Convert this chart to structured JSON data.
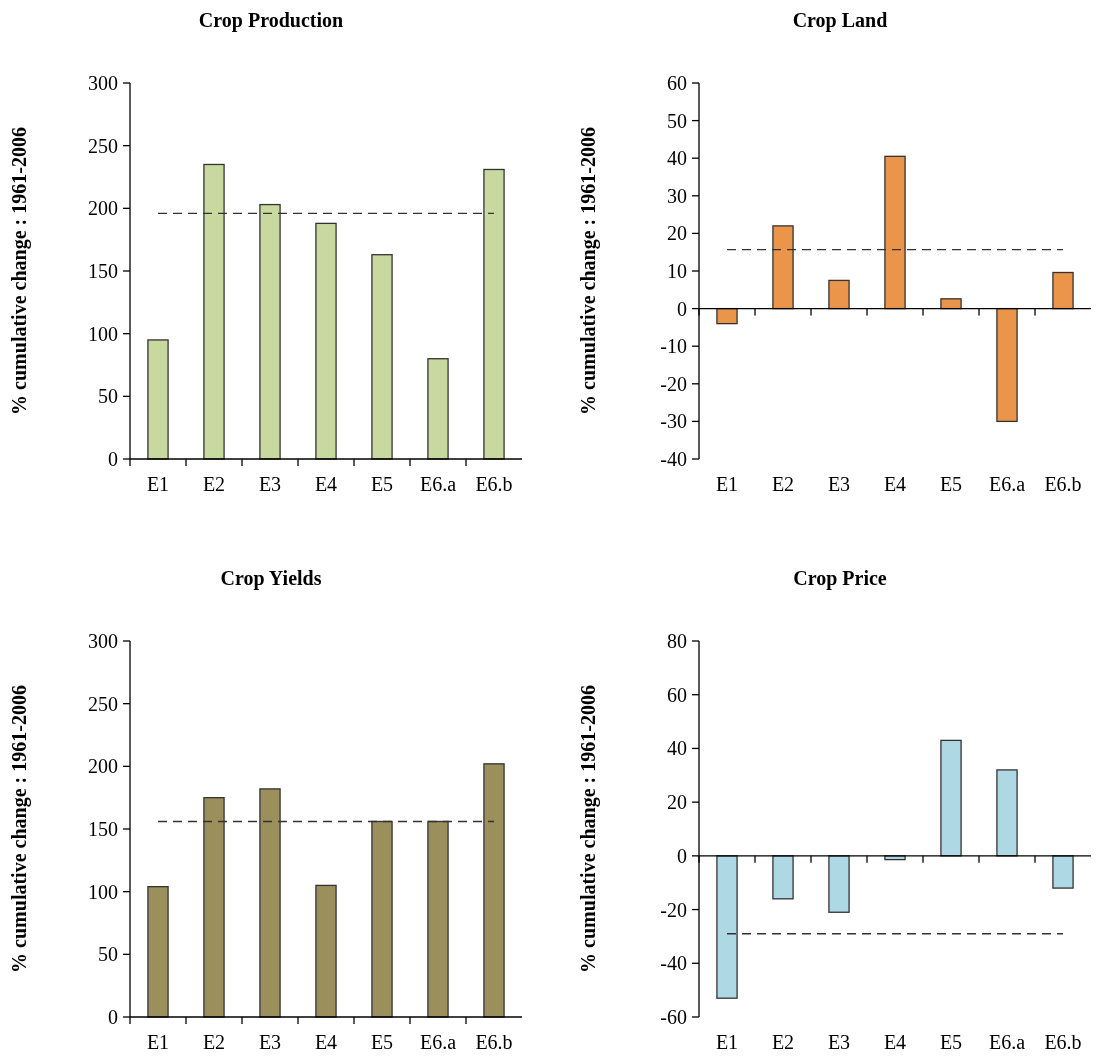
{
  "chart_data": [
    {
      "type": "bar",
      "title": "Crop Production",
      "ylabel": "% cumulative change : 1961-2006",
      "categories": [
        "E1",
        "E2",
        "E3",
        "E4",
        "E5",
        "E6.a",
        "E6.b"
      ],
      "values": [
        95,
        235,
        203,
        188,
        163,
        80,
        231
      ],
      "color": "#c8d9a0",
      "ylim": [
        0,
        300
      ],
      "yticks": [
        0,
        50,
        100,
        150,
        200,
        250,
        300
      ],
      "ref_lines": [
        {
          "axis": "y",
          "value": 196,
          "label": null,
          "color": "#333333",
          "line_style": "dashed"
        }
      ]
    },
    {
      "type": "bar",
      "title": "Crop Land",
      "ylabel": "% cumulative change : 1961-2006",
      "categories": [
        "E1",
        "E2",
        "E3",
        "E4",
        "E5",
        "E6.a",
        "E6.b"
      ],
      "values": [
        -4,
        22,
        7.5,
        40.5,
        2.6,
        -30,
        9.6
      ],
      "color": "#eb954a",
      "ylim": [
        -40,
        60
      ],
      "yticks": [
        -40,
        -30,
        -20,
        -10,
        0,
        10,
        20,
        30,
        40,
        50,
        60
      ],
      "ref_lines": [
        {
          "axis": "y",
          "value": 15.7,
          "label": null,
          "color": "#333333",
          "line_style": "dashed"
        }
      ]
    },
    {
      "type": "bar",
      "title": "Crop Yields",
      "ylabel": "% cumulative change : 1961-2006",
      "categories": [
        "E1",
        "E2",
        "E3",
        "E4",
        "E5",
        "E6.a",
        "E6.b"
      ],
      "values": [
        104,
        175,
        182,
        105,
        156,
        156,
        202
      ],
      "color": "#9b8f5c",
      "ylim": [
        0,
        300
      ],
      "yticks": [
        0,
        50,
        100,
        150,
        200,
        250,
        300
      ],
      "ref_lines": [
        {
          "axis": "y",
          "value": 156,
          "label": null,
          "color": "#333333",
          "line_style": "dashed"
        }
      ]
    },
    {
      "type": "bar",
      "title": "Crop Price",
      "ylabel": "% cumulative change : 1961-2006",
      "categories": [
        "E1",
        "E2",
        "E3",
        "E4",
        "E5",
        "E6.a",
        "E6.b"
      ],
      "values": [
        -53,
        -16,
        -21,
        -1.4,
        43,
        32,
        -12
      ],
      "color": "#add8e4",
      "ylim": [
        -60,
        80
      ],
      "yticks": [
        -60,
        -40,
        -20,
        0,
        20,
        40,
        60,
        80
      ],
      "ref_lines": [
        {
          "axis": "y",
          "value": -29,
          "label": null,
          "color": "#333333",
          "line_style": "dashed"
        }
      ]
    }
  ]
}
